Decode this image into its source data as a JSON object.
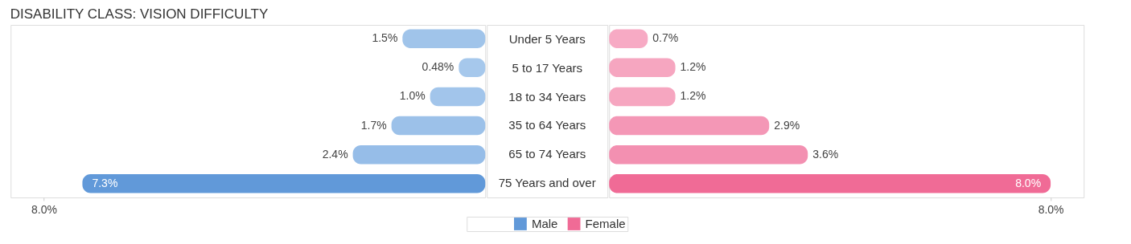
{
  "chart_data": [
    {
      "type": "bar",
      "orientation": "horizontal",
      "title": "DISABILITY CLASS: VISION DIFFICULTY",
      "categories": [
        "Under 5 Years",
        "5 to 17 Years",
        "18 to 34 Years",
        "35 to 64 Years",
        "65 to 74 Years",
        "75 Years and over"
      ],
      "series": [
        {
          "name": "Male",
          "color": "#6199d9",
          "colors": [
            "#a0c4ea",
            "#a6c8ec",
            "#a2c5eb",
            "#9cc1e9",
            "#96bde8",
            "#6199d9"
          ],
          "values": [
            1.5,
            0.48,
            1.0,
            1.7,
            2.4,
            7.3
          ],
          "value_labels": [
            "1.5%",
            "0.48%",
            "1.0%",
            "1.7%",
            "2.4%",
            "7.3%"
          ]
        }
      ],
      "xlim": [
        8.6,
        0
      ],
      "xticks": [
        {
          "value": 8,
          "label": "8.0%"
        }
      ],
      "grid": false,
      "legend": "bottom"
    },
    {
      "type": "bar",
      "orientation": "horizontal",
      "categories": [
        null,
        null,
        null,
        null,
        null,
        null
      ],
      "series": [
        {
          "name": "Female",
          "color": "#f06b96",
          "colors": [
            "#f7aac4",
            "#f6a6c0",
            "#f6a6c0",
            "#f497b6",
            "#f390b1",
            "#f06b96"
          ],
          "values": [
            0.7,
            1.2,
            1.2,
            2.9,
            3.6,
            8.0
          ],
          "value_labels": [
            "0.7%",
            "1.2%",
            "1.2%",
            "2.9%",
            "3.6%",
            "8.0%"
          ]
        }
      ],
      "xlim": [
        0,
        8.6
      ],
      "xticks": [
        {
          "value": 8,
          "label": "8.0%"
        }
      ],
      "grid": false,
      "legend": "bottom"
    }
  ]
}
